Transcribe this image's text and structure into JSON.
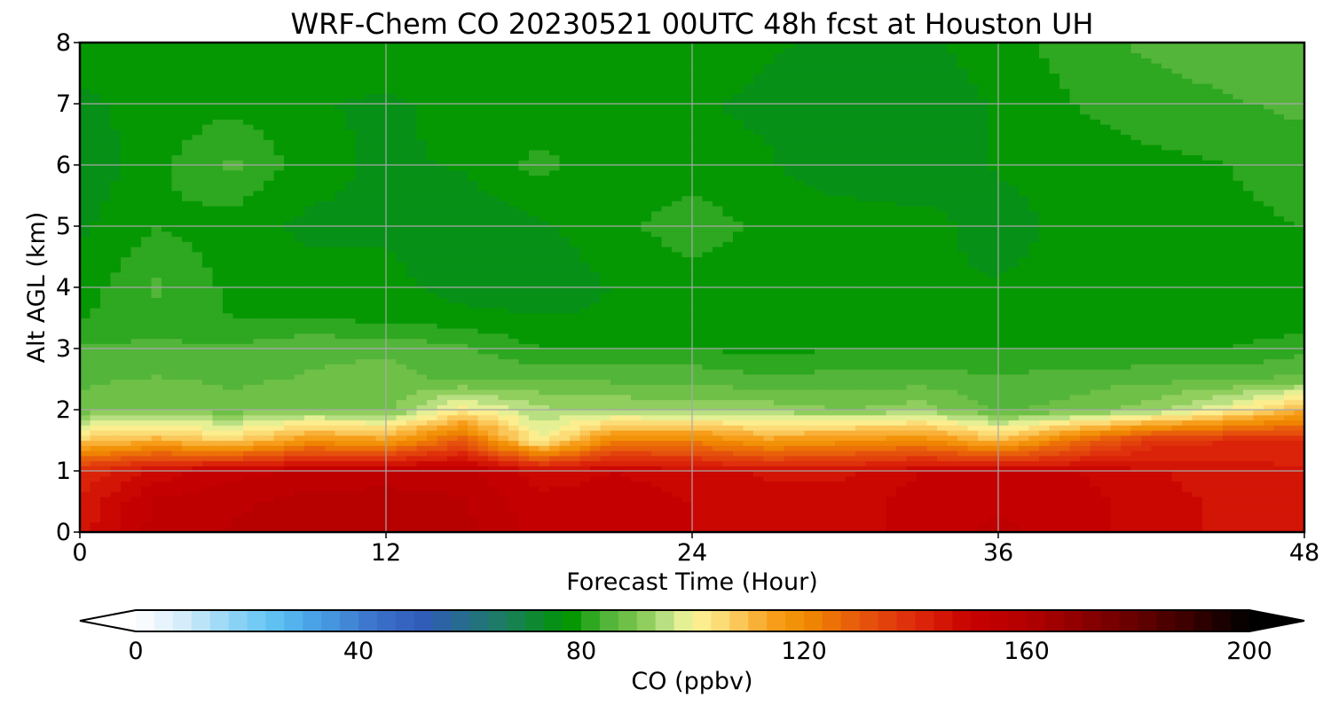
{
  "chart_data": {
    "type": "heatmap",
    "title": "WRF-Chem CO  20230521 00UTC 48h fcst at Houston UH",
    "xlabel": "Forecast Time (Hour)",
    "ylabel": "Alt AGL (km)",
    "xlim": [
      0,
      48
    ],
    "ylim": [
      0,
      8
    ],
    "xticks": [
      0,
      12,
      24,
      36,
      48
    ],
    "yticks": [
      0,
      1,
      2,
      3,
      4,
      5,
      6,
      7,
      8
    ],
    "grid": true,
    "x": [
      0,
      3,
      6,
      9,
      12,
      15,
      18,
      21,
      24,
      27,
      30,
      33,
      36,
      39,
      42,
      45,
      48
    ],
    "y": [
      0,
      0.5,
      1.0,
      1.5,
      2.0,
      2.5,
      3.0,
      3.5,
      4.0,
      5.0,
      6.0,
      7.0,
      8.0
    ],
    "z": [
      [
        145,
        155,
        157,
        158,
        158,
        158,
        152,
        152,
        150,
        148,
        148,
        152,
        154,
        152,
        148,
        146,
        145
      ],
      [
        144,
        154,
        156,
        158,
        158,
        157,
        151,
        152,
        150,
        148,
        148,
        152,
        153,
        152,
        148,
        146,
        145
      ],
      [
        140,
        148,
        152,
        154,
        155,
        155,
        148,
        150,
        148,
        146,
        146,
        150,
        150,
        150,
        147,
        145,
        144
      ],
      [
        108,
        112,
        106,
        118,
        115,
        130,
        100,
        122,
        122,
        115,
        118,
        120,
        110,
        125,
        138,
        140,
        140
      ],
      [
        88,
        90,
        88,
        90,
        88,
        102,
        94,
        93,
        92,
        92,
        90,
        92,
        86,
        88,
        92,
        100,
        112
      ],
      [
        86,
        87,
        86,
        87,
        88,
        86,
        87,
        86,
        86,
        84,
        85,
        85,
        84,
        85,
        86,
        86,
        88
      ],
      [
        84,
        84,
        84,
        86,
        86,
        84,
        80,
        80,
        80,
        79,
        80,
        80,
        80,
        80,
        80,
        80,
        82
      ],
      [
        80,
        82,
        80,
        80,
        79,
        78,
        77,
        77,
        78,
        78,
        78,
        77,
        78,
        78,
        78,
        78,
        78
      ],
      [
        78,
        84,
        79,
        78,
        78,
        75,
        74,
        77,
        78,
        78,
        78,
        77,
        77,
        78,
        78,
        78,
        78
      ],
      [
        76,
        80,
        78,
        76,
        76,
        74,
        76,
        79,
        82,
        79,
        79,
        78,
        75,
        78,
        78,
        79,
        80
      ],
      [
        74,
        79,
        84,
        78,
        76,
        77,
        81,
        78,
        78,
        77,
        74,
        74,
        77,
        78,
        79,
        80,
        82
      ],
      [
        76,
        78,
        79,
        77,
        76,
        78,
        78,
        78,
        77,
        76,
        75,
        75,
        77,
        80,
        82,
        83,
        84
      ],
      [
        78,
        78,
        79,
        78,
        80,
        79,
        78,
        79,
        79,
        77,
        76,
        76,
        78,
        82,
        84,
        85,
        85
      ]
    ],
    "colorbar": {
      "label": "CO  (ppbv)",
      "vmin": 0,
      "vmax": 200,
      "ticks": [
        0,
        40,
        80,
        120,
        160,
        200
      ],
      "extend": "both",
      "levels": 60,
      "stops": [
        [
          0,
          "#ffffff"
        ],
        [
          8,
          "#d8eefb"
        ],
        [
          16,
          "#9ad8f6"
        ],
        [
          24,
          "#62c4f4"
        ],
        [
          32,
          "#49a2e6"
        ],
        [
          44,
          "#3a6ec8"
        ],
        [
          52,
          "#2f5cb7"
        ],
        [
          60,
          "#256f86"
        ],
        [
          66,
          "#1b7d62"
        ],
        [
          72,
          "#0e8a2e"
        ],
        [
          78,
          "#019600"
        ],
        [
          84,
          "#4bb236"
        ],
        [
          90,
          "#7cc64d"
        ],
        [
          96,
          "#c4e48b"
        ],
        [
          100,
          "#fdf69a"
        ],
        [
          106,
          "#fbd770"
        ],
        [
          114,
          "#f8a01e"
        ],
        [
          120,
          "#f08c00"
        ],
        [
          130,
          "#e7570c"
        ],
        [
          140,
          "#dd2a0b"
        ],
        [
          150,
          "#c80000"
        ],
        [
          160,
          "#b40000"
        ],
        [
          170,
          "#8c0000"
        ],
        [
          180,
          "#640000"
        ],
        [
          190,
          "#360000"
        ],
        [
          200,
          "#000000"
        ]
      ]
    }
  }
}
